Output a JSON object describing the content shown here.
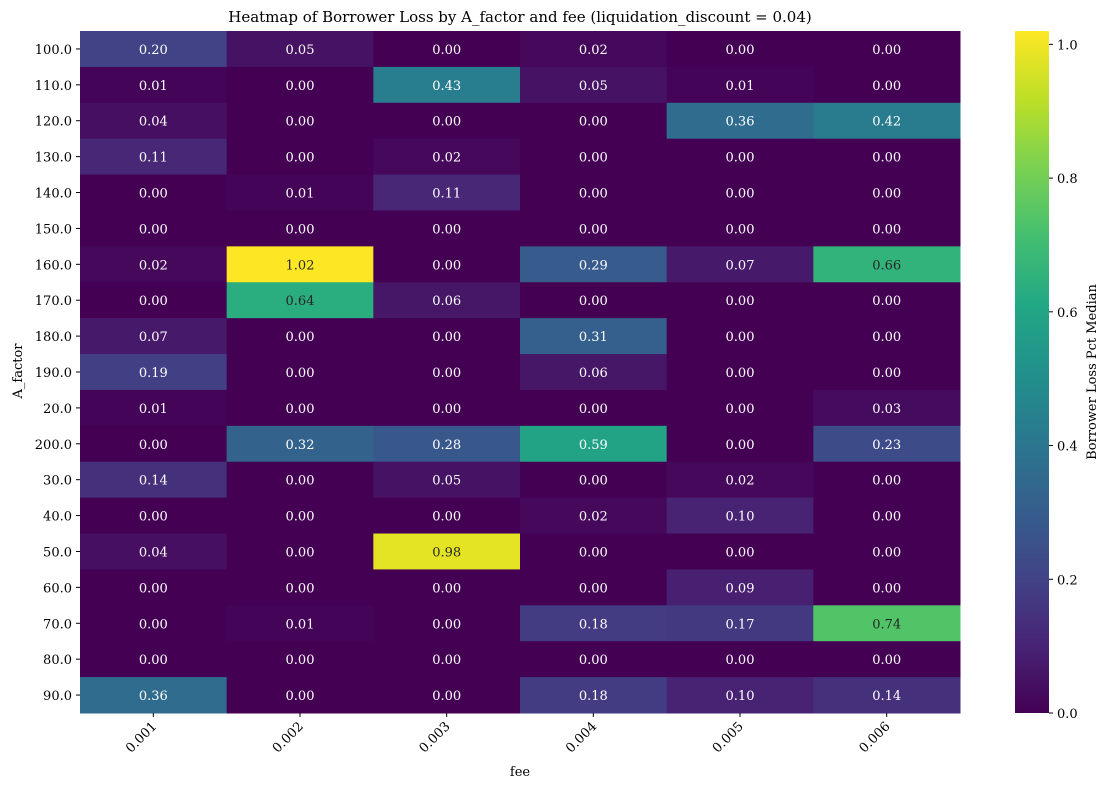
{
  "chart_data": {
    "type": "heatmap",
    "title": "Heatmap of Borrower Loss by A_factor and fee (liquidation_discount = 0.04)",
    "xlabel": "fee",
    "ylabel": "A_factor",
    "x_categories": [
      "0.001",
      "0.002",
      "0.003",
      "0.004",
      "0.005",
      "0.006"
    ],
    "y_categories": [
      "100.0",
      "110.0",
      "120.0",
      "130.0",
      "140.0",
      "150.0",
      "160.0",
      "170.0",
      "180.0",
      "190.0",
      "20.0",
      "200.0",
      "30.0",
      "40.0",
      "50.0",
      "60.0",
      "70.0",
      "80.0",
      "90.0"
    ],
    "values": [
      [
        0.2,
        0.05,
        0.0,
        0.02,
        0.0,
        0.0
      ],
      [
        0.01,
        0.0,
        0.43,
        0.05,
        0.01,
        0.0
      ],
      [
        0.04,
        0.0,
        0.0,
        0.0,
        0.36,
        0.42
      ],
      [
        0.11,
        0.0,
        0.02,
        0.0,
        0.0,
        0.0
      ],
      [
        0.0,
        0.01,
        0.11,
        0.0,
        0.0,
        0.0
      ],
      [
        0.0,
        0.0,
        0.0,
        0.0,
        0.0,
        0.0
      ],
      [
        0.02,
        1.02,
        0.0,
        0.29,
        0.07,
        0.66
      ],
      [
        0.0,
        0.64,
        0.06,
        0.0,
        0.0,
        0.0
      ],
      [
        0.07,
        0.0,
        0.0,
        0.31,
        0.0,
        0.0
      ],
      [
        0.19,
        0.0,
        0.0,
        0.06,
        0.0,
        0.0
      ],
      [
        0.01,
        0.0,
        0.0,
        0.0,
        0.0,
        0.03
      ],
      [
        0.0,
        0.32,
        0.28,
        0.59,
        0.0,
        0.23
      ],
      [
        0.14,
        0.0,
        0.05,
        0.0,
        0.02,
        0.0
      ],
      [
        0.0,
        0.0,
        0.0,
        0.02,
        0.1,
        0.0
      ],
      [
        0.04,
        0.0,
        0.98,
        0.0,
        0.0,
        0.0
      ],
      [
        0.0,
        0.0,
        0.0,
        0.0,
        0.09,
        0.0
      ],
      [
        0.0,
        0.01,
        0.0,
        0.18,
        0.17,
        0.74
      ],
      [
        0.0,
        0.0,
        0.0,
        0.0,
        0.0,
        0.0
      ],
      [
        0.36,
        0.0,
        0.0,
        0.18,
        0.1,
        0.14
      ]
    ],
    "value_format": "0.00",
    "colormap": "viridis",
    "color_range": [
      0.0,
      1.02
    ],
    "colorbar": {
      "label": "Borrower Loss Pct Median",
      "ticks": [
        "0.0",
        "0.2",
        "0.4",
        "0.6",
        "0.8",
        "1.0"
      ],
      "placement": "right"
    },
    "grid": false
  }
}
